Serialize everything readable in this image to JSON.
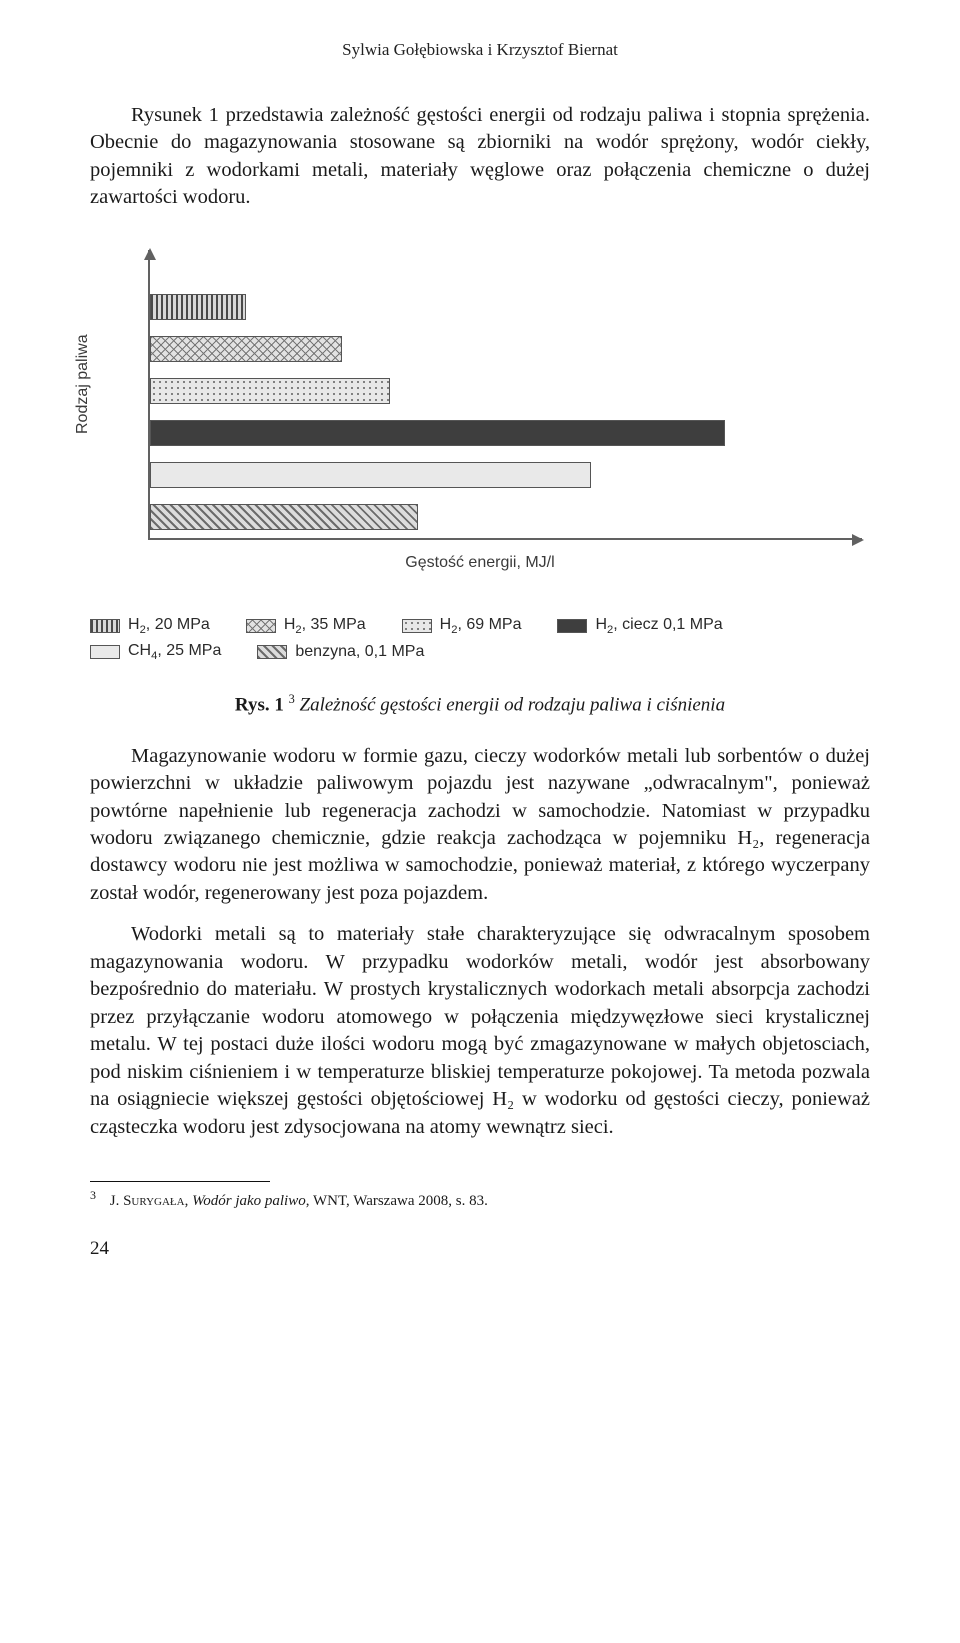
{
  "running_head": "Sylwia Gołębiowska i Krzysztof Biernat",
  "intro_para": "Rysunek 1 przedstawia zależność gęstości energii od rodzaju paliwa i stopnia sprężenia. Obecnie do magazynowania stosowane są zbiorniki na wodór sprężony, wodór ciekły, pojemniki z wodorkami metali, materiały węglowe oraz połączenia chemiczne o dużej zawartości wodoru.",
  "chart": {
    "type": "horizontal-bar",
    "y_axis_label": "Rodzaj paliwa",
    "x_axis_label": "Gęstość energii, MJ/l",
    "max_value": 36,
    "label_fontsize": 16,
    "axis_color": "#616161",
    "background_color": "#ffffff",
    "bars": [
      {
        "value": 5.0,
        "pattern": "vstripes",
        "series": "h2_20mpa"
      },
      {
        "value": 10.0,
        "pattern": "crosshatch",
        "series": "h2_35mpa"
      },
      {
        "value": 12.5,
        "pattern": "dots",
        "series": "h2_69mpa"
      },
      {
        "value": 30.0,
        "pattern": "solid_dark",
        "series": "h2_ciecz"
      },
      {
        "value": 23.0,
        "pattern": "light_gray",
        "series": "ch4_25mpa"
      },
      {
        "value": 14.0,
        "pattern": "diag",
        "series": "benzyna"
      }
    ],
    "legend": {
      "row1": [
        {
          "key": "h2_20mpa",
          "label_html": "H<sub>2</sub>, 20 MPa"
        },
        {
          "key": "h2_35mpa",
          "label_html": "H<sub>2</sub>, 35 MPa"
        },
        {
          "key": "h2_69mpa",
          "label_html": "H<sub>2</sub>, 69 MPa"
        },
        {
          "key": "h2_ciecz",
          "label_html": "H<sub>2</sub>, ciecz 0,1 MPa"
        }
      ],
      "row2": [
        {
          "key": "ch4_25mpa",
          "label_html": "CH<sub>4</sub>, 25 MPa"
        },
        {
          "key": "benzyna",
          "label_html": "benzyna, 0,1 MPa"
        }
      ]
    },
    "patterns": {
      "vstripes": {
        "fill": "#d9d9d9",
        "css_bg": "repeating-linear-gradient(90deg,#4a4a4a 0 2px,#d9d9d9 2px 5px)"
      },
      "crosshatch": {
        "fill": "#e3e3e3",
        "css_bg": "repeating-linear-gradient(45deg,#777 0 1px,transparent 1px 6px),repeating-linear-gradient(-45deg,#777 0 1px,#e3e3e3 1px 6px)"
      },
      "dots": {
        "fill": "#e8e8e8",
        "css_bg": "radial-gradient(#777 1px,transparent 1.2px) 0 0/6px 6px,#e8e8e8"
      },
      "solid_dark": {
        "fill": "#3e3e3e",
        "css_bg": "#3e3e3e"
      },
      "light_gray": {
        "fill": "#e9e9e9",
        "css_bg": "#e9e9e9"
      },
      "diag": {
        "fill": "#dcdcdc",
        "css_bg": "repeating-linear-gradient(45deg,#6b6b6b 0 2px,#dcdcdc 2px 6px)"
      }
    }
  },
  "figure_caption": {
    "lead": "Rys. 1",
    "footnote_mark": "3",
    "text": " Zależność gęstości energii od rodzaju paliwa i ciśnienia"
  },
  "body_para_1": "Magazynowanie wodoru w formie gazu, cieczy wodorków metali lub sorbentów o dużej powierzchni w układzie paliwowym pojazdu jest nazywane „odwracalnym\", ponieważ powtórne napełnienie lub regeneracja zachodzi w samochodzie. Natomiast w przypadku wodoru związanego chemicznie, gdzie reakcja zachodząca w pojemniku H₂, regeneracja dostawcy wodoru nie jest możliwa w samochodzie, ponieważ materiał, z którego wyczerpany został wodór, regenerowany jest poza pojazdem.",
  "body_para_2": "Wodorki metali są to materiały stałe charakteryzujące się odwracalnym sposobem magazynowania wodoru. W przypadku wodorków metali, wodór jest absorbowany bezpośrednio do materiału. W prostych krystalicznych wodorkach metali absorpcja zachodzi przez przyłączanie wodoru atomowego w połączenia międzywęzłowe sieci krystalicznej metalu. W tej postaci duże ilości wodoru mogą być zmagazynowane w małych objetosciach, pod niskim ciśnieniem i w temperaturze bliskiej temperaturze pokojowej. Ta metoda pozwala na osiągniecie większej gęstości objętościowej H₂ w wodorku od gęstości cieczy, ponieważ cząsteczka wodoru jest zdysocjowana na atomy wewnątrz sieci.",
  "footnote": {
    "num": "3",
    "author": "J. Surygała",
    "title": "Wodór jako paliwo",
    "rest": ", WNT, Warszawa 2008, s. 83."
  },
  "page_number": "24"
}
